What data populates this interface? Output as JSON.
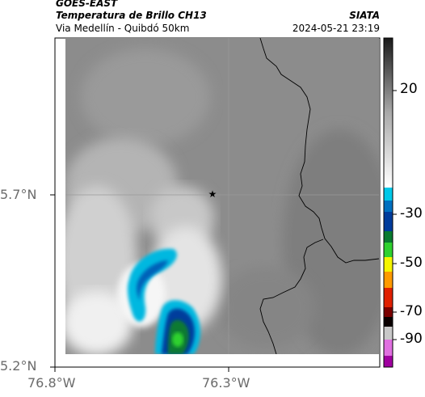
{
  "header": {
    "satellite": "GOES-EAST",
    "product": "Temperatura de Brillo CH13",
    "region": "Via Medellín - Quibdó 50km",
    "brand": "SIATA",
    "datetime": "2024-05-21 23:19"
  },
  "axes": {
    "y_ticks": [
      "5.7°N",
      "5.2°N"
    ],
    "x_ticks": [
      "76.8°W",
      "76.3°W"
    ]
  },
  "colorbar": {
    "ticks": [
      "20",
      "-30",
      "-50",
      "-70",
      "-90"
    ],
    "colors": [
      "#1a1a1a",
      "#4a4a4a",
      "#7a7a7a",
      "#a8a8a8",
      "#d8d8d8",
      "#ffffff",
      "#00c8e8",
      "#0070c0",
      "#003c9c",
      "#0a7a30",
      "#2fd12f",
      "#f5f500",
      "#ff9a00",
      "#e02000",
      "#7a0000",
      "#0a0000",
      "#c8c8c8",
      "#e070e0",
      "#a000a0"
    ]
  },
  "map": {
    "marker_icon": "star-icon",
    "background_color": "#8c8c8c"
  }
}
